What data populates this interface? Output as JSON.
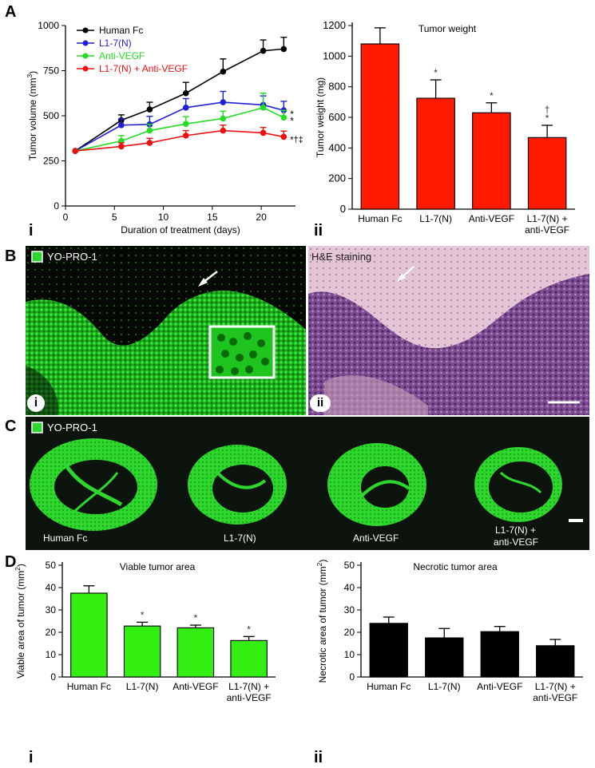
{
  "panels": {
    "A": "A",
    "B": "B",
    "C": "C",
    "D": "D",
    "roman_i": "i",
    "roman_ii": "ii"
  },
  "colors": {
    "human_fc": "#000000",
    "l17n": "#1f1fd6",
    "anti_vegf": "#22dd22",
    "combo": "#ee1111",
    "bar_red": "#ff1a00",
    "bar_green": "#33ee11",
    "bar_black": "#000000",
    "fluor_green": "#2ed62e",
    "he_purple": "#6a3a85"
  },
  "chart_data": [
    {
      "id": "A-i",
      "type": "line",
      "xlabel": "Duration of treatment (days)",
      "ylabel": "Tumor volume (mm3)",
      "ylabel_base": "Tumor volume (mm",
      "ylabel_sup": "3",
      "ylabel_end": ")",
      "xlim": [
        0,
        23.5
      ],
      "ylim": [
        0,
        1000
      ],
      "xticks": [
        0,
        5,
        10,
        15,
        20
      ],
      "yticks": [
        0,
        250,
        500,
        750,
        1000
      ],
      "legend_position": "top-left",
      "series": [
        {
          "name": "Human Fc",
          "color": "#000000",
          "x": [
            1,
            5.7,
            8.6,
            12.3,
            16.1,
            20.2,
            22.3
          ],
          "y": [
            305,
            475,
            535,
            625,
            745,
            860,
            870
          ],
          "err": [
            0,
            30,
            40,
            60,
            70,
            60,
            65
          ]
        },
        {
          "name": "L1-7(N)",
          "color": "#1f1fd6",
          "x": [
            1,
            5.7,
            8.6,
            12.3,
            16.1,
            20.2,
            22.3
          ],
          "y": [
            305,
            448,
            452,
            545,
            575,
            560,
            530
          ],
          "err": [
            0,
            35,
            45,
            50,
            60,
            50,
            50
          ]
        },
        {
          "name": "Anti-VEGF",
          "color": "#22dd22",
          "x": [
            1,
            5.7,
            8.6,
            12.3,
            16.1,
            20.2,
            22.3
          ],
          "y": [
            305,
            360,
            418,
            455,
            485,
            545,
            490
          ],
          "err": [
            0,
            30,
            35,
            40,
            40,
            80,
            40
          ]
        },
        {
          "name": "L1-7(N) + Anti-VEGF",
          "color": "#ee1111",
          "x": [
            1,
            5.7,
            8.6,
            12.3,
            16.1,
            20.2,
            22.3
          ],
          "y": [
            305,
            330,
            350,
            390,
            418,
            405,
            383
          ],
          "err": [
            0,
            20,
            25,
            28,
            30,
            30,
            32
          ]
        }
      ],
      "annotations": [
        "*",
        "*",
        "*†‡"
      ]
    },
    {
      "id": "A-ii",
      "type": "bar",
      "title": "Tumor weight",
      "ylabel": "Tumor weight (mg)",
      "ylim": [
        0,
        1200
      ],
      "yticks": [
        0,
        200,
        400,
        600,
        800,
        1000,
        1200
      ],
      "categories": [
        "Human Fc",
        "L1-7(N)",
        "Anti-VEGF",
        "L1-7(N) +|anti-VEGF"
      ],
      "values": [
        1080,
        725,
        630,
        468
      ],
      "errors": [
        105,
        120,
        65,
        80
      ],
      "marks": [
        "",
        "*",
        "*",
        "†|*"
      ],
      "color": "#ff1a00"
    },
    {
      "id": "D-i",
      "type": "bar",
      "title": "Viable tumor area",
      "ylabel": "Viable area of tumor (mm2)",
      "ylabel_base": "Viable area of tumor (mm",
      "ylabel_sup": "2",
      "ylabel_end": ")",
      "ylim": [
        0,
        50
      ],
      "yticks": [
        0,
        10,
        20,
        30,
        40,
        50
      ],
      "categories": [
        "Human Fc",
        "L1-7(N)",
        "Anti-VEGF",
        "L1-7(N) +|anti-VEGF"
      ],
      "values": [
        37.5,
        22.8,
        22.0,
        16.3
      ],
      "errors": [
        3.3,
        1.7,
        1.2,
        1.8
      ],
      "marks": [
        "",
        "*",
        "*",
        "*"
      ],
      "color": "#33ee11"
    },
    {
      "id": "D-ii",
      "type": "bar",
      "title": "Necrotic tumor area",
      "ylabel": "Necrotic area of tumor (mm2)",
      "ylabel_base": "Necrotic area of tumor (mm",
      "ylabel_sup": "2",
      "ylabel_end": ")",
      "ylim": [
        0,
        50
      ],
      "yticks": [
        0,
        10,
        20,
        30,
        40,
        50
      ],
      "categories": [
        "Human Fc",
        "L1-7(N)",
        "Anti-VEGF",
        "L1-7(N) +|anti-VEGF"
      ],
      "values": [
        24.0,
        17.5,
        20.3,
        14.0
      ],
      "errors": [
        2.8,
        4.2,
        2.3,
        2.8
      ],
      "marks": [
        "",
        "",
        "",
        ""
      ],
      "color": "#000000"
    }
  ],
  "images": {
    "B_i_label": "YO-PRO-1",
    "B_ii_label": "H&E staining",
    "C_label": "YO-PRO-1",
    "C_captions": [
      "Human Fc",
      "L1-7(N)",
      "Anti-VEGF",
      "L1-7(N) +",
      "anti-VEGF"
    ]
  }
}
